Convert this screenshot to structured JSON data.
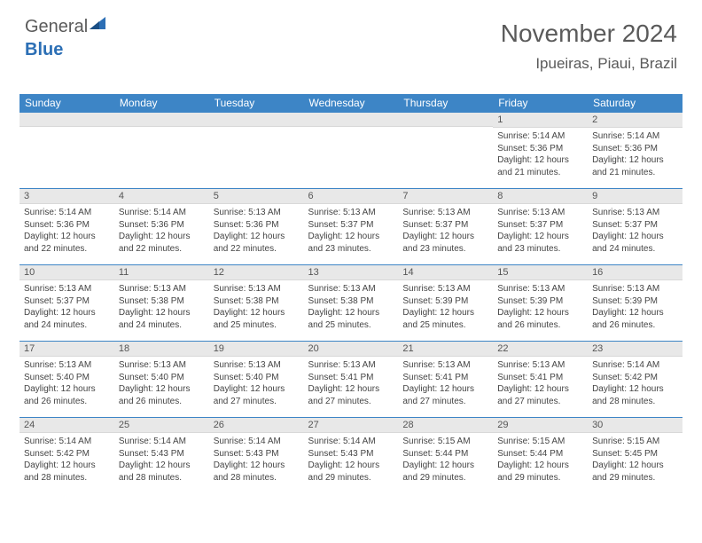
{
  "logo": {
    "text1": "General",
    "text2": "Blue"
  },
  "title": "November 2024",
  "location": "Ipueiras, Piaui, Brazil",
  "colors": {
    "header_bg": "#3d85c6",
    "header_text": "#ffffff",
    "daynum_bg": "#e8e8e8",
    "cell_border": "#3d85c6",
    "body_text": "#444444",
    "title_text": "#5a5a5a"
  },
  "weekdays": [
    "Sunday",
    "Monday",
    "Tuesday",
    "Wednesday",
    "Thursday",
    "Friday",
    "Saturday"
  ],
  "weeks": [
    [
      {
        "blank": true
      },
      {
        "blank": true
      },
      {
        "blank": true
      },
      {
        "blank": true
      },
      {
        "blank": true
      },
      {
        "day": "1",
        "sunrise": "5:14 AM",
        "sunset": "5:36 PM",
        "daylight": "12 hours and 21 minutes."
      },
      {
        "day": "2",
        "sunrise": "5:14 AM",
        "sunset": "5:36 PM",
        "daylight": "12 hours and 21 minutes."
      }
    ],
    [
      {
        "day": "3",
        "sunrise": "5:14 AM",
        "sunset": "5:36 PM",
        "daylight": "12 hours and 22 minutes."
      },
      {
        "day": "4",
        "sunrise": "5:14 AM",
        "sunset": "5:36 PM",
        "daylight": "12 hours and 22 minutes."
      },
      {
        "day": "5",
        "sunrise": "5:13 AM",
        "sunset": "5:36 PM",
        "daylight": "12 hours and 22 minutes."
      },
      {
        "day": "6",
        "sunrise": "5:13 AM",
        "sunset": "5:37 PM",
        "daylight": "12 hours and 23 minutes."
      },
      {
        "day": "7",
        "sunrise": "5:13 AM",
        "sunset": "5:37 PM",
        "daylight": "12 hours and 23 minutes."
      },
      {
        "day": "8",
        "sunrise": "5:13 AM",
        "sunset": "5:37 PM",
        "daylight": "12 hours and 23 minutes."
      },
      {
        "day": "9",
        "sunrise": "5:13 AM",
        "sunset": "5:37 PM",
        "daylight": "12 hours and 24 minutes."
      }
    ],
    [
      {
        "day": "10",
        "sunrise": "5:13 AM",
        "sunset": "5:37 PM",
        "daylight": "12 hours and 24 minutes."
      },
      {
        "day": "11",
        "sunrise": "5:13 AM",
        "sunset": "5:38 PM",
        "daylight": "12 hours and 24 minutes."
      },
      {
        "day": "12",
        "sunrise": "5:13 AM",
        "sunset": "5:38 PM",
        "daylight": "12 hours and 25 minutes."
      },
      {
        "day": "13",
        "sunrise": "5:13 AM",
        "sunset": "5:38 PM",
        "daylight": "12 hours and 25 minutes."
      },
      {
        "day": "14",
        "sunrise": "5:13 AM",
        "sunset": "5:39 PM",
        "daylight": "12 hours and 25 minutes."
      },
      {
        "day": "15",
        "sunrise": "5:13 AM",
        "sunset": "5:39 PM",
        "daylight": "12 hours and 26 minutes."
      },
      {
        "day": "16",
        "sunrise": "5:13 AM",
        "sunset": "5:39 PM",
        "daylight": "12 hours and 26 minutes."
      }
    ],
    [
      {
        "day": "17",
        "sunrise": "5:13 AM",
        "sunset": "5:40 PM",
        "daylight": "12 hours and 26 minutes."
      },
      {
        "day": "18",
        "sunrise": "5:13 AM",
        "sunset": "5:40 PM",
        "daylight": "12 hours and 26 minutes."
      },
      {
        "day": "19",
        "sunrise": "5:13 AM",
        "sunset": "5:40 PM",
        "daylight": "12 hours and 27 minutes."
      },
      {
        "day": "20",
        "sunrise": "5:13 AM",
        "sunset": "5:41 PM",
        "daylight": "12 hours and 27 minutes."
      },
      {
        "day": "21",
        "sunrise": "5:13 AM",
        "sunset": "5:41 PM",
        "daylight": "12 hours and 27 minutes."
      },
      {
        "day": "22",
        "sunrise": "5:13 AM",
        "sunset": "5:41 PM",
        "daylight": "12 hours and 27 minutes."
      },
      {
        "day": "23",
        "sunrise": "5:14 AM",
        "sunset": "5:42 PM",
        "daylight": "12 hours and 28 minutes."
      }
    ],
    [
      {
        "day": "24",
        "sunrise": "5:14 AM",
        "sunset": "5:42 PM",
        "daylight": "12 hours and 28 minutes."
      },
      {
        "day": "25",
        "sunrise": "5:14 AM",
        "sunset": "5:43 PM",
        "daylight": "12 hours and 28 minutes."
      },
      {
        "day": "26",
        "sunrise": "5:14 AM",
        "sunset": "5:43 PM",
        "daylight": "12 hours and 28 minutes."
      },
      {
        "day": "27",
        "sunrise": "5:14 AM",
        "sunset": "5:43 PM",
        "daylight": "12 hours and 29 minutes."
      },
      {
        "day": "28",
        "sunrise": "5:15 AM",
        "sunset": "5:44 PM",
        "daylight": "12 hours and 29 minutes."
      },
      {
        "day": "29",
        "sunrise": "5:15 AM",
        "sunset": "5:44 PM",
        "daylight": "12 hours and 29 minutes."
      },
      {
        "day": "30",
        "sunrise": "5:15 AM",
        "sunset": "5:45 PM",
        "daylight": "12 hours and 29 minutes."
      }
    ]
  ],
  "labels": {
    "sunrise": "Sunrise: ",
    "sunset": "Sunset: ",
    "daylight": "Daylight: "
  }
}
